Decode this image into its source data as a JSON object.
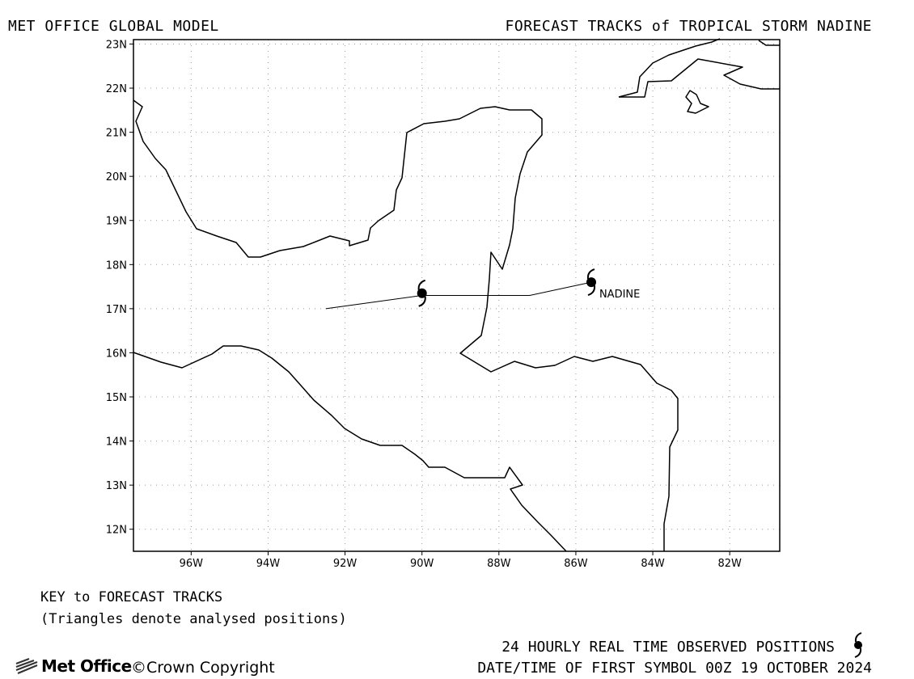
{
  "header": {
    "left_title": "MET OFFICE GLOBAL MODEL",
    "right_title": "FORECAST TRACKS of TROPICAL STORM NADINE"
  },
  "map": {
    "lon_range": [
      -97.5,
      -80.7
    ],
    "lat_range": [
      11.5,
      23.1
    ],
    "lat_ticks": [
      {
        "value": 12,
        "label": "12N"
      },
      {
        "value": 13,
        "label": "13N"
      },
      {
        "value": 14,
        "label": "14N"
      },
      {
        "value": 15,
        "label": "15N"
      },
      {
        "value": 16,
        "label": "16N"
      },
      {
        "value": 17,
        "label": "17N"
      },
      {
        "value": 18,
        "label": "18N"
      },
      {
        "value": 19,
        "label": "19N"
      },
      {
        "value": 20,
        "label": "20N"
      },
      {
        "value": 21,
        "label": "21N"
      },
      {
        "value": 22,
        "label": "22N"
      },
      {
        "value": 23,
        "label": "23N"
      }
    ],
    "lon_ticks": [
      {
        "value": -96,
        "label": "96W"
      },
      {
        "value": -94,
        "label": "94W"
      },
      {
        "value": -92,
        "label": "92W"
      },
      {
        "value": -90,
        "label": "90W"
      },
      {
        "value": -88,
        "label": "88W"
      },
      {
        "value": -86,
        "label": "86W"
      },
      {
        "value": -84,
        "label": "84W"
      },
      {
        "value": -82,
        "label": "82W"
      }
    ],
    "grid": "dotted",
    "coast_color": "#000000",
    "storm": {
      "name_label": "NADINE",
      "track": [
        [
          -85.6,
          17.6
        ],
        [
          -87.2,
          17.3
        ],
        [
          -90.0,
          17.3
        ],
        [
          -92.5,
          17.0
        ]
      ],
      "observed_positions": [
        [
          -85.6,
          17.6
        ],
        [
          -90.0,
          17.35
        ]
      ],
      "symbol": "tropical-storm-symbol"
    }
  },
  "key": {
    "title": "KEY to FORECAST TRACKS",
    "note": "(Triangles denote analysed positions)"
  },
  "footer": {
    "observed_label": "24 HOURLY REAL TIME OBSERVED POSITIONS",
    "datetime": "DATE/TIME OF FIRST SYMBOL 00Z 19 OCTOBER 2024",
    "logo_text": "Met Office",
    "copyright": "©Crown Copyright"
  }
}
